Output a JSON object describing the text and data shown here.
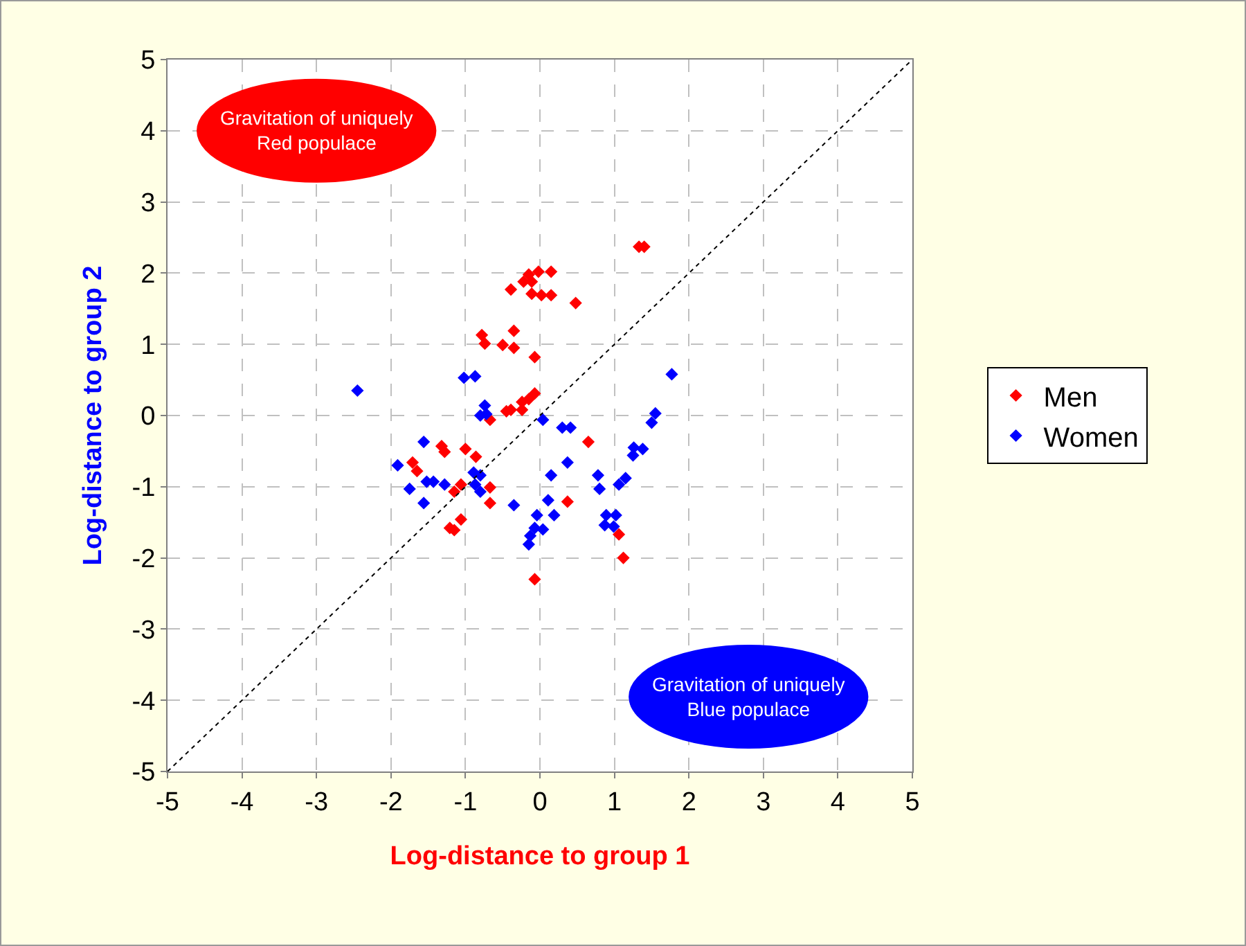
{
  "chart_data": {
    "type": "scatter",
    "xlabel": "Log-distance to group 1",
    "ylabel": "Log-distance to group 2",
    "xlim": [
      -5,
      5
    ],
    "ylim": [
      -5,
      5
    ],
    "xticks": [
      -5,
      -4,
      -3,
      -2,
      -1,
      0,
      1,
      2,
      3,
      4,
      5
    ],
    "yticks": [
      -5,
      -4,
      -3,
      -2,
      -1,
      0,
      1,
      2,
      3,
      4,
      5
    ],
    "grid": true,
    "legend": "right",
    "marker": "diamond",
    "annotations": [
      "Gravitation of uniquely Red populace",
      "Gravitation of uniquely Blue populace"
    ],
    "series": [
      {
        "name": "Men",
        "color": "#ff0000",
        "x": [
          1.33,
          1.4,
          -0.15,
          -0.02,
          0.15,
          -0.22,
          -0.11,
          -0.39,
          -0.11,
          0.02,
          0.15,
          0.48,
          -0.78,
          -0.74,
          -0.5,
          -0.35,
          -0.35,
          -0.07,
          -0.07,
          -0.15,
          -0.24,
          -0.39,
          -0.45,
          -0.24,
          -0.67,
          -1.32,
          -1.28,
          -1.0,
          -0.86,
          -1.71,
          -1.65,
          0.65,
          -1.06,
          -1.15,
          -0.67,
          -0.67,
          0.37,
          -1.06,
          -1.21,
          -1.15,
          1.06,
          1.12,
          -0.07
        ],
        "values": [
          2.37,
          2.37,
          1.98,
          2.02,
          2.02,
          1.88,
          1.88,
          1.77,
          1.71,
          1.69,
          1.69,
          1.58,
          1.13,
          1.01,
          0.99,
          1.19,
          0.95,
          0.82,
          0.31,
          0.23,
          0.19,
          0.08,
          0.06,
          0.08,
          -0.06,
          -0.43,
          -0.51,
          -0.47,
          -0.58,
          -0.66,
          -0.78,
          -0.37,
          -0.97,
          -1.07,
          -1.01,
          -1.23,
          -1.21,
          -1.46,
          -1.58,
          -1.61,
          -1.67,
          -2.0,
          -2.3
        ]
      },
      {
        "name": "Women",
        "color": "#0000ff",
        "x": [
          -2.45,
          -1.02,
          -0.87,
          1.77,
          -0.74,
          -0.8,
          -0.72,
          0.04,
          0.3,
          0.41,
          1.55,
          1.5,
          -1.56,
          -1.91,
          -1.75,
          -1.56,
          -1.52,
          -1.43,
          -1.28,
          -0.89,
          -0.8,
          -0.87,
          -0.8,
          1.26,
          1.25,
          1.38,
          0.15,
          0.37,
          0.78,
          0.8,
          1.15,
          1.06,
          0.11,
          -0.35,
          -0.04,
          0.19,
          -0.07,
          0.04,
          -0.13,
          -0.15,
          0.89,
          1.02,
          0.87,
          0.99
        ],
        "values": [
          0.35,
          0.53,
          0.55,
          0.58,
          0.14,
          0.0,
          0.02,
          -0.06,
          -0.17,
          -0.17,
          0.03,
          -0.1,
          -0.37,
          -0.7,
          -1.03,
          -1.23,
          -0.93,
          -0.93,
          -0.97,
          -0.8,
          -0.84,
          -0.97,
          -1.07,
          -0.45,
          -0.56,
          -0.47,
          -0.84,
          -0.66,
          -0.84,
          -1.03,
          -0.88,
          -0.97,
          -1.19,
          -1.26,
          -1.4,
          -1.4,
          -1.58,
          -1.6,
          -1.69,
          -1.81,
          -1.4,
          -1.4,
          -1.54,
          -1.56
        ]
      },
      {
        "type": "line",
        "color": "#000000",
        "line_style": "dotted",
        "marker": "none",
        "x": [
          -5,
          5
        ],
        "values": [
          -5,
          5
        ]
      }
    ]
  }
}
